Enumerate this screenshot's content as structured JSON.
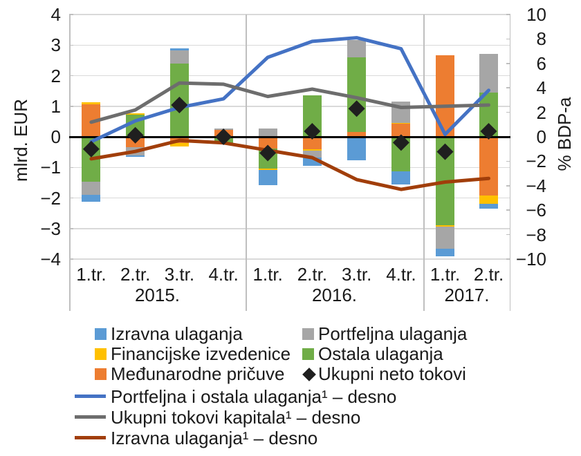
{
  "chart_data": {
    "type": "combo: stacked bar (left axis) + line (right axis)",
    "left_axis": {
      "title": "mlrd. EUR",
      "min": -4,
      "max": 4,
      "step": 1,
      "tick_labels": [
        "4",
        "3",
        "2",
        "1",
        "0",
        "−1",
        "−2",
        "−3",
        "−4"
      ]
    },
    "right_axis": {
      "title": "% BDP-a",
      "min": -10,
      "max": 10,
      "step": 2,
      "tick_labels": [
        "10",
        "8",
        "6",
        "4",
        "2",
        "0",
        "−2",
        "−4",
        "−6",
        "−8",
        "−10"
      ]
    },
    "x_groups": [
      {
        "year": "2015.",
        "quarters": [
          "1.tr.",
          "2.tr.",
          "3.tr.",
          "4.tr."
        ]
      },
      {
        "year": "2016.",
        "quarters": [
          "1.tr.",
          "2.tr.",
          "3.tr.",
          "4.tr."
        ]
      },
      {
        "year": "2017.",
        "quarters": [
          "1.tr.",
          "2.tr."
        ]
      }
    ],
    "series": {
      "izravna": {
        "label": "Izravna ulaganja",
        "color": "#5B9BD5"
      },
      "portfeljna": {
        "label": "Portfeljna ulaganja",
        "color": "#A6A6A6"
      },
      "izvedenice": {
        "label": "Financijske izvedenice",
        "color": "#FFC000"
      },
      "ostala": {
        "label": "Ostala ulaganja",
        "color": "#70AD47"
      },
      "pricuve": {
        "label": "Međunarodne pričuve",
        "color": "#ED7D31"
      },
      "neto": {
        "label": "Ukupni neto tokovi",
        "color": "#1F1F1F"
      }
    },
    "bars_unit": "mlrd. EUR",
    "bars": [
      {
        "quarter": "1.tr.",
        "year": "2015.",
        "pos": [
          [
            "pricuve",
            1.07
          ],
          [
            "izvedenice",
            0.06
          ]
        ],
        "neg": [
          [
            "ostala",
            -1.48
          ],
          [
            "portfeljna",
            -0.42
          ],
          [
            "izravna",
            -0.23
          ]
        ],
        "net": -0.4
      },
      {
        "quarter": "2.tr.",
        "year": "2015.",
        "pos": [
          [
            "ostala",
            0.73
          ],
          [
            "izvedenice",
            0.03
          ]
        ],
        "neg": [
          [
            "pricuve",
            -0.35
          ],
          [
            "portfeljna",
            -0.25
          ],
          [
            "izravna",
            -0.05
          ]
        ],
        "net": 0.05
      },
      {
        "quarter": "3.tr.",
        "year": "2015.",
        "pos": [
          [
            "ostala",
            2.4
          ],
          [
            "portfeljna",
            0.43
          ],
          [
            "izravna",
            0.07
          ]
        ],
        "neg": [
          [
            "pricuve",
            -0.2
          ],
          [
            "izvedenice",
            -0.11
          ]
        ],
        "net": 1.04
      },
      {
        "quarter": "4.tr.",
        "year": "2015.",
        "pos": [
          [
            "pricuve",
            0.22
          ],
          [
            "portfeljna",
            0.04
          ]
        ],
        "neg": [
          [
            "ostala",
            -0.23
          ]
        ],
        "net": 0.0
      },
      {
        "quarter": "1.tr.",
        "year": "2016.",
        "pos": [
          [
            "portfeljna",
            0.27
          ]
        ],
        "neg": [
          [
            "pricuve",
            -0.38
          ],
          [
            "ostala",
            -0.66
          ],
          [
            "izvedenice",
            -0.04
          ],
          [
            "izravna",
            -0.51
          ]
        ],
        "net": -0.53
      },
      {
        "quarter": "2.tr.",
        "year": "2016.",
        "pos": [
          [
            "ostala",
            1.36
          ]
        ],
        "neg": [
          [
            "pricuve",
            -0.4
          ],
          [
            "izvedenice",
            -0.05
          ],
          [
            "portfeljna",
            -0.23
          ],
          [
            "izravna",
            -0.26
          ]
        ],
        "net": 0.18
      },
      {
        "quarter": "3.tr.",
        "year": "2016.",
        "pos": [
          [
            "pricuve",
            0.16
          ],
          [
            "ostala",
            2.44
          ],
          [
            "portfeljna",
            0.56
          ]
        ],
        "neg": [
          [
            "izravna",
            -0.76
          ]
        ],
        "net": 0.92
      },
      {
        "quarter": "4.tr.",
        "year": "2016.",
        "pos": [
          [
            "pricuve",
            0.42
          ],
          [
            "izvedenice",
            0.03
          ],
          [
            "portfeljna",
            0.71
          ]
        ],
        "neg": [
          [
            "ostala",
            -1.14
          ],
          [
            "izravna",
            -0.41
          ]
        ],
        "net": -0.19
      },
      {
        "quarter": "1.tr.",
        "year": "2017.",
        "pos": [
          [
            "pricuve",
            2.66
          ]
        ],
        "neg": [
          [
            "ostala",
            -2.89
          ],
          [
            "izvedenice",
            -0.05
          ],
          [
            "portfeljna",
            -0.72
          ],
          [
            "izravna",
            -0.24
          ]
        ],
        "net": -0.49
      },
      {
        "quarter": "2.tr.",
        "year": "2017.",
        "pos": [
          [
            "ostala",
            1.44
          ],
          [
            "portfeljna",
            1.28
          ]
        ],
        "neg": [
          [
            "pricuve",
            -1.93
          ],
          [
            "izvedenice",
            -0.27
          ],
          [
            "izravna",
            -0.15
          ]
        ],
        "net": 0.18
      }
    ],
    "lines_unit": "% BDP-a",
    "lines": [
      {
        "key": "portfeljna-ostala-desno",
        "label": "Portfeljna i ostala ulaganja¹ – desno",
        "color": "#4472C4",
        "axis": "right",
        "values": [
          -0.4,
          1.3,
          2.4,
          3.1,
          6.5,
          7.8,
          8.1,
          7.2,
          0.2,
          3.8
        ]
      },
      {
        "key": "ukupni-tokovi-desno",
        "label": "Ukupni tokovi kapitala¹ – desno",
        "color": "#6D6D6D",
        "axis": "right",
        "values": [
          1.2,
          2.2,
          4.4,
          4.3,
          3.3,
          3.9,
          3.2,
          2.4,
          2.5,
          2.6
        ]
      },
      {
        "key": "izravna-desno",
        "label": "Izravna ulaganja¹ – desno",
        "color": "#A13E0A",
        "axis": "right",
        "values": [
          -1.8,
          -1.2,
          -0.3,
          -0.5,
          -1.1,
          -1.7,
          -3.5,
          -4.3,
          -3.7,
          -3.4
        ]
      }
    ],
    "colors": {
      "grid": "#D9D9D9",
      "zero_line": "#000000",
      "frame": "#BFBFBF",
      "text": "#1A1A1A",
      "background": "#FFFFFF"
    }
  }
}
